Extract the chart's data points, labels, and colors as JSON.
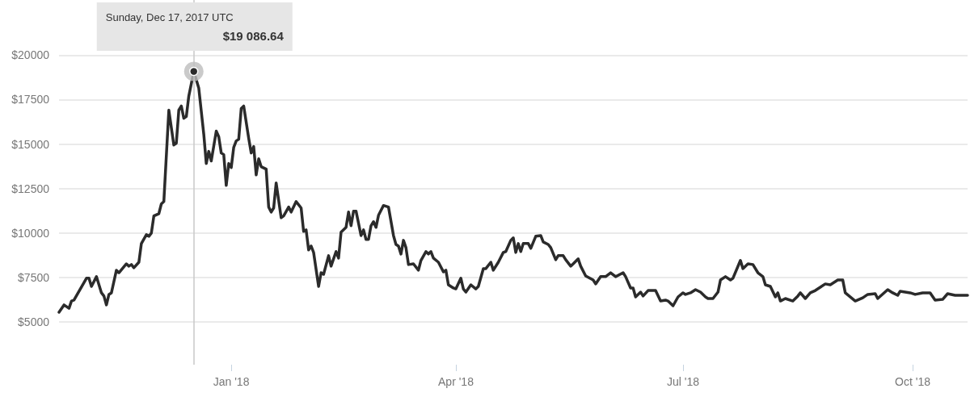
{
  "chart_data": {
    "type": "line",
    "x": [
      "2017-10-24",
      "2017-10-26",
      "2017-10-28",
      "2017-10-29",
      "2017-10-30",
      "2017-11-04",
      "2017-11-05",
      "2017-11-06",
      "2017-11-08",
      "2017-11-10",
      "2017-11-11",
      "2017-11-12",
      "2017-11-13",
      "2017-11-14",
      "2017-11-16",
      "2017-11-17",
      "2017-11-20",
      "2017-11-21",
      "2017-11-22",
      "2017-11-23",
      "2017-11-25",
      "2017-11-26",
      "2017-11-28",
      "2017-11-29",
      "2017-11-30",
      "2017-12-01",
      "2017-12-03",
      "2017-12-04",
      "2017-12-05",
      "2017-12-07",
      "2017-12-09",
      "2017-12-10",
      "2017-12-11",
      "2017-12-12",
      "2017-12-13",
      "2017-12-14",
      "2017-12-15",
      "2017-12-17",
      "2017-12-19",
      "2017-12-21",
      "2017-12-22",
      "2017-12-23",
      "2017-12-24",
      "2017-12-26",
      "2017-12-27",
      "2017-12-28",
      "2017-12-29",
      "2017-12-30",
      "2017-12-31",
      "2018-01-01",
      "2018-01-02",
      "2018-01-03",
      "2018-01-04",
      "2018-01-05",
      "2018-01-06",
      "2018-01-08",
      "2018-01-09",
      "2018-01-10",
      "2018-01-11",
      "2018-01-12",
      "2018-01-13",
      "2018-01-15",
      "2018-01-16",
      "2018-01-17",
      "2018-01-18",
      "2018-01-19",
      "2018-01-21",
      "2018-01-22",
      "2018-01-24",
      "2018-01-25",
      "2018-01-27",
      "2018-01-29",
      "2018-01-30",
      "2018-01-31",
      "2018-02-01",
      "2018-02-02",
      "2018-02-03",
      "2018-02-05",
      "2018-02-06",
      "2018-02-07",
      "2018-02-09",
      "2018-02-10",
      "2018-02-12",
      "2018-02-13",
      "2018-02-14",
      "2018-02-16",
      "2018-02-17",
      "2018-02-18",
      "2018-02-19",
      "2018-02-20",
      "2018-02-22",
      "2018-02-23",
      "2018-02-24",
      "2018-02-25",
      "2018-02-26",
      "2018-02-27",
      "2018-02-28",
      "2018-03-01",
      "2018-03-03",
      "2018-03-05",
      "2018-03-07",
      "2018-03-08",
      "2018-03-09",
      "2018-03-10",
      "2018-03-11",
      "2018-03-12",
      "2018-03-13",
      "2018-03-15",
      "2018-03-17",
      "2018-03-18",
      "2018-03-20",
      "2018-03-21",
      "2018-03-22",
      "2018-03-23",
      "2018-03-25",
      "2018-03-27",
      "2018-03-28",
      "2018-03-29",
      "2018-03-31",
      "2018-04-01",
      "2018-04-03",
      "2018-04-04",
      "2018-04-05",
      "2018-04-07",
      "2018-04-09",
      "2018-04-10",
      "2018-04-12",
      "2018-04-13",
      "2018-04-15",
      "2018-04-16",
      "2018-04-18",
      "2018-04-20",
      "2018-04-21",
      "2018-04-23",
      "2018-04-24",
      "2018-04-25",
      "2018-04-26",
      "2018-04-27",
      "2018-04-28",
      "2018-04-30",
      "2018-05-01",
      "2018-05-03",
      "2018-05-05",
      "2018-05-06",
      "2018-05-08",
      "2018-05-09",
      "2018-05-11",
      "2018-05-12",
      "2018-05-14",
      "2018-05-15",
      "2018-05-17",
      "2018-05-18",
      "2018-05-20",
      "2018-05-21",
      "2018-05-23",
      "2018-05-26",
      "2018-05-27",
      "2018-05-29",
      "2018-05-31",
      "2018-06-02",
      "2018-06-04",
      "2018-06-07",
      "2018-06-08",
      "2018-06-10",
      "2018-06-11",
      "2018-06-12",
      "2018-06-14",
      "2018-06-15",
      "2018-06-17",
      "2018-06-20",
      "2018-06-22",
      "2018-06-24",
      "2018-06-25",
      "2018-06-27",
      "2018-06-29",
      "2018-07-01",
      "2018-07-02",
      "2018-07-04",
      "2018-07-06",
      "2018-07-08",
      "2018-07-10",
      "2018-07-11",
      "2018-07-13",
      "2018-07-15",
      "2018-07-16",
      "2018-07-18",
      "2018-07-20",
      "2018-07-21",
      "2018-07-24",
      "2018-07-25",
      "2018-07-27",
      "2018-07-29",
      "2018-07-31",
      "2018-08-02",
      "2018-08-03",
      "2018-08-05",
      "2018-08-07",
      "2018-08-08",
      "2018-08-09",
      "2018-08-11",
      "2018-08-14",
      "2018-08-16",
      "2018-08-17",
      "2018-08-19",
      "2018-08-21",
      "2018-08-23",
      "2018-08-27",
      "2018-08-29",
      "2018-09-01",
      "2018-09-03",
      "2018-09-04",
      "2018-09-08",
      "2018-09-11",
      "2018-09-13",
      "2018-09-16",
      "2018-09-17",
      "2018-09-21",
      "2018-09-23",
      "2018-09-25",
      "2018-09-26",
      "2018-09-30",
      "2018-10-02",
      "2018-10-05",
      "2018-10-08",
      "2018-10-10",
      "2018-10-13",
      "2018-10-15",
      "2018-10-18",
      "2018-10-23"
    ],
    "series": [
      {
        "color": "#2b2b2b",
        "values": [
          5550,
          5960,
          5770,
          6180,
          6230,
          7460,
          7460,
          7000,
          7550,
          6640,
          6460,
          5960,
          6550,
          6640,
          7910,
          7770,
          8270,
          8140,
          8230,
          8050,
          8360,
          9410,
          9910,
          9820,
          10000,
          10960,
          11090,
          11640,
          11770,
          16910,
          14950,
          15050,
          16910,
          17140,
          16450,
          16550,
          17700,
          19086.64,
          18140,
          15550,
          13910,
          14590,
          14050,
          15730,
          15410,
          14500,
          14410,
          12680,
          13910,
          13680,
          14820,
          15180,
          15270,
          17000,
          17140,
          15320,
          14500,
          14860,
          13270,
          14180,
          13730,
          13590,
          11460,
          11180,
          11410,
          12820,
          10860,
          10960,
          11460,
          11180,
          11770,
          11410,
          10090,
          10180,
          9050,
          9270,
          8910,
          7000,
          7770,
          7680,
          8730,
          8140,
          8960,
          8590,
          10050,
          10320,
          11180,
          10410,
          11230,
          11230,
          9860,
          10180,
          9640,
          9640,
          10410,
          10640,
          10320,
          11000,
          11550,
          11460,
          9860,
          9360,
          9270,
          8820,
          9590,
          9180,
          8230,
          8270,
          7910,
          8460,
          8960,
          8820,
          8960,
          8590,
          8360,
          7820,
          7910,
          7090,
          6910,
          6860,
          7460,
          6860,
          6680,
          7090,
          6860,
          7000,
          8000,
          8000,
          8360,
          7910,
          8360,
          8910,
          8960,
          9590,
          9730,
          8910,
          9410,
          8960,
          9410,
          9410,
          9140,
          9820,
          9860,
          9500,
          9360,
          9180,
          8500,
          8730,
          8730,
          8500,
          8140,
          8270,
          8550,
          8140,
          7590,
          7360,
          7140,
          7550,
          7550,
          7770,
          7550,
          7770,
          7550,
          6910,
          6910,
          6410,
          6680,
          6460,
          6770,
          6770,
          6180,
          6230,
          6180,
          5910,
          6410,
          6640,
          6550,
          6640,
          6820,
          6680,
          6410,
          6320,
          6320,
          6680,
          7360,
          7550,
          7360,
          7460,
          8460,
          8000,
          8270,
          8230,
          7770,
          7550,
          7090,
          7000,
          6410,
          6640,
          6180,
          6320,
          6180,
          6460,
          6640,
          6320,
          6640,
          6770,
          7140,
          7090,
          7360,
          7360,
          6640,
          6180,
          6360,
          6550,
          6590,
          6320,
          6820,
          6640,
          6500,
          6730,
          6640,
          6550,
          6640,
          6640,
          6230,
          6270,
          6590,
          6500,
          6500
        ]
      }
    ],
    "xlim": [
      "2017-10-24",
      "2018-10-23"
    ],
    "xticks": [
      {
        "value": "2018-01-01",
        "label": "Jan '18"
      },
      {
        "value": "2018-04-01",
        "label": "Apr '18"
      },
      {
        "value": "2018-07-01",
        "label": "Jul '18"
      },
      {
        "value": "2018-10-01",
        "label": "Oct '18"
      }
    ],
    "ylim": [
      2600,
      23100
    ],
    "yticks": [
      {
        "value": 5000,
        "label": "$5000"
      },
      {
        "value": 7500,
        "label": "$7500"
      },
      {
        "value": 10000,
        "label": "$10000"
      },
      {
        "value": 12500,
        "label": "$12500"
      },
      {
        "value": 15000,
        "label": "$15000"
      },
      {
        "value": 17500,
        "label": "$17500"
      },
      {
        "value": 20000,
        "label": "$20000"
      }
    ],
    "grid": "y",
    "marker": "none",
    "line_style": "solid",
    "ref_lines": [
      {
        "axis": "x",
        "value": "2017-12-17",
        "color": "#c8c8c8"
      }
    ],
    "annotations": [
      "Sunday, Dec 17, 2017 UTC",
      "$19 086.64"
    ]
  }
}
